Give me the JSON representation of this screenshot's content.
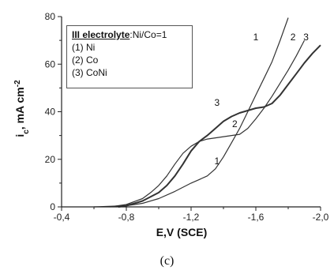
{
  "chart_data": {
    "type": "line",
    "xlabel": "E,V (SCE)",
    "ylabel_main": "i",
    "ylabel_sub": "c",
    "ylabel_rest": ", mA cm",
    "ylabel_sup": "-2",
    "xlim": [
      -0.4,
      -2.0
    ],
    "ylim": [
      0,
      80
    ],
    "x_ticks": [
      {
        "value": -0.4,
        "label": "-0,4"
      },
      {
        "value": -0.8,
        "label": "-0,8"
      },
      {
        "value": -1.2,
        "label": "-1,2"
      },
      {
        "value": -1.6,
        "label": "-1,6"
      },
      {
        "value": -2.0,
        "label": "-2,0"
      }
    ],
    "y_ticks": [
      {
        "value": 0,
        "label": "0"
      },
      {
        "value": 20,
        "label": "20"
      },
      {
        "value": 40,
        "label": "40"
      },
      {
        "value": 60,
        "label": "60"
      },
      {
        "value": 80,
        "label": "80"
      }
    ],
    "legend": {
      "title_bold": "III electrolyte",
      "title_rest": ":Ni/Co=1",
      "entries": [
        "(1) Ni",
        "(2) Co",
        "(3) CoNi"
      ]
    },
    "series": [
      {
        "label": "1",
        "x": [
          -0.6,
          -0.8,
          -0.9,
          -1.0,
          -1.1,
          -1.2,
          -1.25,
          -1.3,
          -1.35,
          -1.4,
          -1.45,
          -1.5,
          -1.55,
          -1.6,
          -1.65,
          -1.7,
          -1.75,
          -1.8
        ],
        "y": [
          0,
          0.5,
          1.5,
          3.5,
          6.5,
          10,
          11.5,
          13,
          16,
          21,
          27,
          33,
          40,
          47,
          54,
          61,
          70,
          79.5
        ],
        "label_at": {
          "x": -1.36,
          "y": 18
        },
        "end_label_at": {
          "x": -1.6,
          "y": 70
        }
      },
      {
        "label": "2",
        "x": [
          -0.7,
          -0.8,
          -0.9,
          -0.95,
          -1.0,
          -1.05,
          -1.1,
          -1.15,
          -1.2,
          -1.25,
          -1.3,
          -1.35,
          -1.4,
          -1.45,
          -1.5,
          -1.55,
          -1.6,
          -1.65,
          -1.7,
          -1.75,
          -1.8,
          -1.85,
          -1.9
        ],
        "y": [
          0,
          1,
          3.5,
          6,
          9,
          13,
          18,
          22.5,
          25.5,
          27.5,
          28.5,
          29,
          29.5,
          30,
          30.5,
          33,
          37,
          41.5,
          46.5,
          52,
          57.5,
          63.5,
          70
        ],
        "label_at": {
          "x": -1.47,
          "y": 33.5
        },
        "end_label_at": {
          "x": -1.83,
          "y": 70
        }
      },
      {
        "label": "3",
        "x": [
          -0.75,
          -0.8,
          -0.9,
          -1.0,
          -1.05,
          -1.1,
          -1.15,
          -1.2,
          -1.25,
          -1.3,
          -1.35,
          -1.4,
          -1.45,
          -1.5,
          -1.55,
          -1.6,
          -1.65,
          -1.7,
          -1.75,
          -1.8,
          -1.85,
          -1.9,
          -1.95,
          -2.0
        ],
        "y": [
          0,
          0.5,
          2.5,
          6,
          9,
          13,
          18,
          23.5,
          27.5,
          30,
          33,
          36,
          38,
          39.5,
          40.5,
          41.5,
          42,
          43.5,
          47,
          51.5,
          56,
          60.5,
          64.5,
          68
        ],
        "label_at": {
          "x": -1.36,
          "y": 42.5
        },
        "end_label_at": {
          "x": -1.91,
          "y": 70
        }
      }
    ],
    "caption": "(c)"
  }
}
